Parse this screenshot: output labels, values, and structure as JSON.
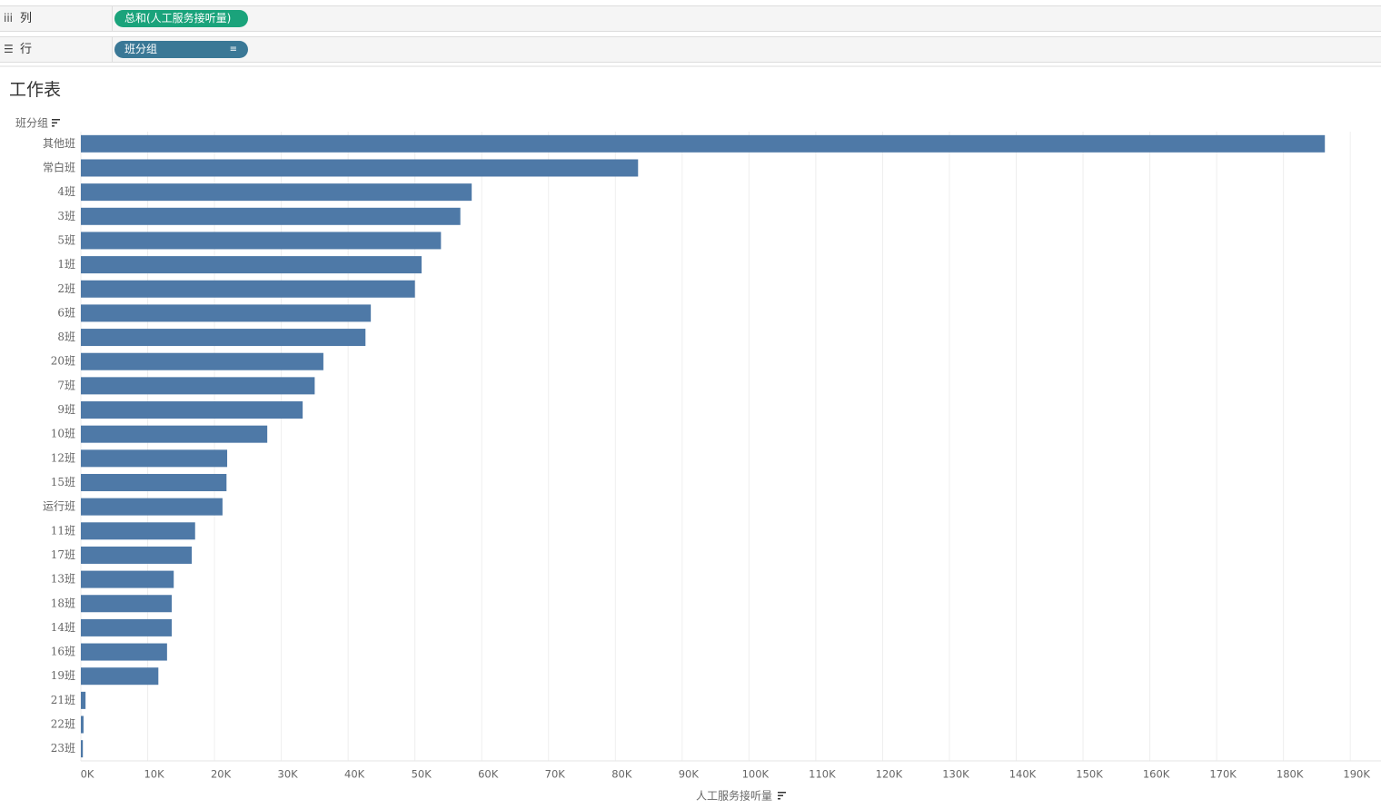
{
  "shelves": {
    "columns": {
      "label": "列",
      "pill": "总和(人工服务接听量)"
    },
    "rows": {
      "label": "行",
      "pill": "班分组"
    }
  },
  "chart_data": {
    "type": "bar",
    "orientation": "horizontal",
    "title": "工作表",
    "y_axis_label": "班分组",
    "x_axis_label": "人工服务接听量",
    "categories": [
      "其他班",
      "常白班",
      "4班",
      "3班",
      "5班",
      "1班",
      "2班",
      "6班",
      "8班",
      "20班",
      "7班",
      "9班",
      "10班",
      "12班",
      "15班",
      "运行班",
      "11班",
      "17班",
      "13班",
      "18班",
      "14班",
      "16班",
      "19班",
      "21班",
      "22班",
      "23班"
    ],
    "values": [
      186200,
      83400,
      58500,
      56800,
      53900,
      51000,
      50000,
      43400,
      42600,
      36300,
      35000,
      33200,
      27900,
      21900,
      21800,
      21200,
      17100,
      16600,
      13900,
      13600,
      13600,
      12900,
      11600,
      700,
      400,
      300
    ],
    "color": "#4e79a7",
    "xlim": [
      0,
      194600
    ],
    "xticks": [
      {
        "value": 0,
        "label": "0K"
      },
      {
        "value": 10000,
        "label": "10K"
      },
      {
        "value": 20000,
        "label": "20K"
      },
      {
        "value": 30000,
        "label": "30K"
      },
      {
        "value": 40000,
        "label": "40K"
      },
      {
        "value": 50000,
        "label": "50K"
      },
      {
        "value": 60000,
        "label": "60K"
      },
      {
        "value": 70000,
        "label": "70K"
      },
      {
        "value": 80000,
        "label": "80K"
      },
      {
        "value": 90000,
        "label": "90K"
      },
      {
        "value": 100000,
        "label": "100K"
      },
      {
        "value": 110000,
        "label": "110K"
      },
      {
        "value": 120000,
        "label": "120K"
      },
      {
        "value": 130000,
        "label": "130K"
      },
      {
        "value": 140000,
        "label": "140K"
      },
      {
        "value": 150000,
        "label": "150K"
      },
      {
        "value": 160000,
        "label": "160K"
      },
      {
        "value": 170000,
        "label": "170K"
      },
      {
        "value": 180000,
        "label": "180K"
      },
      {
        "value": 190000,
        "label": "190K"
      }
    ],
    "grid": true
  }
}
